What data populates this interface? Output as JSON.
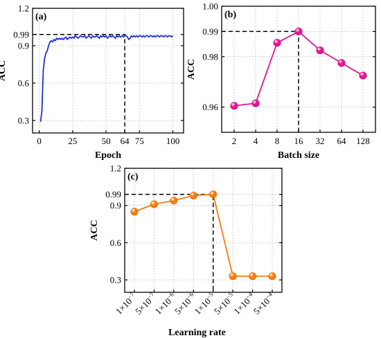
{
  "chart_data": [
    {
      "panel": "(a)",
      "type": "line",
      "xlabel": "Epoch",
      "ylabel": "ACC",
      "xlim": [
        -5,
        108
      ],
      "ylim": [
        0.2,
        1.2
      ],
      "xticks": [
        0,
        25,
        50,
        64,
        75,
        100
      ],
      "yticks": [
        0.3,
        0.6,
        0.9,
        0.99,
        1.2
      ],
      "ytick_labels": [
        "0.3",
        "0.6",
        "0.9",
        "0.99",
        "1.2"
      ],
      "grid": true,
      "line_color": "#1f2fd6",
      "reference": {
        "x": 64,
        "y": 0.99
      },
      "x": [
        1,
        2,
        3,
        4,
        5,
        6,
        7,
        8,
        9,
        10,
        11,
        12,
        13,
        14,
        15,
        16,
        17,
        18,
        19,
        20,
        21,
        22,
        23,
        24,
        25,
        26,
        27,
        28,
        29,
        30,
        31,
        32,
        33,
        34,
        35,
        36,
        37,
        38,
        39,
        40,
        41,
        42,
        43,
        44,
        45,
        46,
        47,
        48,
        49,
        50,
        51,
        52,
        53,
        54,
        55,
        56,
        57,
        58,
        59,
        60,
        61,
        62,
        63,
        64,
        65,
        66,
        67,
        68,
        69,
        70,
        71,
        72,
        73,
        74,
        75,
        76,
        77,
        78,
        79,
        80,
        81,
        82,
        83,
        84,
        85,
        86,
        87,
        88,
        89,
        90,
        91,
        92,
        93,
        94,
        95,
        96,
        97,
        98,
        99,
        100
      ],
      "y": [
        0.29,
        0.38,
        0.7,
        0.8,
        0.84,
        0.86,
        0.9,
        0.93,
        0.94,
        0.93,
        0.95,
        0.94,
        0.96,
        0.95,
        0.96,
        0.95,
        0.96,
        0.95,
        0.96,
        0.97,
        0.95,
        0.96,
        0.97,
        0.96,
        0.97,
        0.96,
        0.98,
        0.97,
        0.96,
        0.97,
        0.98,
        0.97,
        0.97,
        0.98,
        0.96,
        0.97,
        0.98,
        0.97,
        0.96,
        0.98,
        0.97,
        0.97,
        0.98,
        0.97,
        0.96,
        0.98,
        0.97,
        0.98,
        0.97,
        0.98,
        0.96,
        0.97,
        0.98,
        0.97,
        0.98,
        0.97,
        0.96,
        0.98,
        0.97,
        0.98,
        0.97,
        0.98,
        0.97,
        0.99,
        0.98,
        0.97,
        0.95,
        0.96,
        0.98,
        0.97,
        0.98,
        0.97,
        0.98,
        0.97,
        0.98,
        0.98,
        0.97,
        0.98,
        0.97,
        0.98,
        0.98,
        0.97,
        0.98,
        0.98,
        0.97,
        0.98,
        0.97,
        0.98,
        0.98,
        0.97,
        0.98,
        0.98,
        0.97,
        0.98,
        0.98,
        0.97,
        0.98,
        0.98,
        0.97,
        0.98
      ]
    },
    {
      "panel": "(b)",
      "type": "line",
      "xlabel": "Batch size",
      "ylabel": "ACC",
      "categories": [
        "2",
        "4",
        "8",
        "16",
        "32",
        "64",
        "128"
      ],
      "values": [
        0.9605,
        0.9615,
        0.9855,
        0.99,
        0.9825,
        0.9775,
        0.9725
      ],
      "ylim": [
        0.95,
        1.0
      ],
      "yticks": [
        0.96,
        0.98,
        0.99,
        1.0
      ],
      "ytick_labels": [
        "0.96",
        "0.98",
        "0.99",
        "1.00"
      ],
      "grid": true,
      "line_color": "#e0168f",
      "reference": {
        "category": "16",
        "y": 0.99
      }
    },
    {
      "panel": "(c)",
      "type": "line",
      "xlabel": "Learning rate",
      "ylabel": "ACC",
      "categories": [
        {
          "mant": "1×10",
          "exp": "−7"
        },
        {
          "mant": "5×10",
          "exp": "−7"
        },
        {
          "mant": "1×10",
          "exp": "−6"
        },
        {
          "mant": "5×10",
          "exp": "−6"
        },
        {
          "mant": "1×10",
          "exp": "−5"
        },
        {
          "mant": "5×10",
          "exp": "−5"
        },
        {
          "mant": "1×10",
          "exp": "−4"
        },
        {
          "mant": "5×10",
          "exp": "−4"
        }
      ],
      "values": [
        0.85,
        0.91,
        0.94,
        0.98,
        0.99,
        0.33,
        0.33,
        0.33
      ],
      "ylim": [
        0.2,
        1.2
      ],
      "yticks": [
        0.3,
        0.6,
        0.9,
        0.99,
        1.2
      ],
      "ytick_labels": [
        "0.3",
        "0.6",
        "0.9",
        "0.99",
        "1.2"
      ],
      "grid": true,
      "line_color": "#f07c12",
      "reference": {
        "category_index": 4,
        "y": 0.99
      }
    }
  ]
}
